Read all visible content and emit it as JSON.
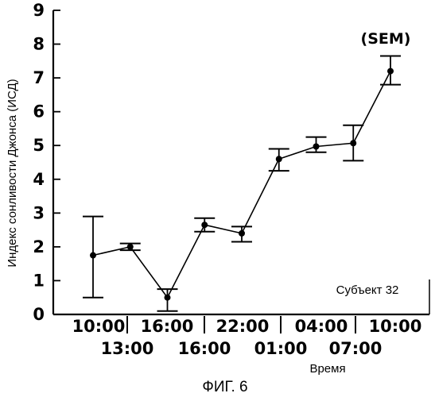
{
  "chart_data": {
    "type": "line",
    "ylabel": "Индекс сонливости Джонса (ИСД)",
    "xlabel": "Время",
    "ylim": [
      0,
      9
    ],
    "yticks": [
      0,
      1,
      2,
      3,
      4,
      5,
      6,
      7,
      8,
      9
    ],
    "x_ticks_top": [
      "10:00",
      "16:00",
      "22:00",
      "04:00",
      "10:00"
    ],
    "x_ticks_bottom": [
      "13:00",
      "16:00",
      "01:00",
      "07:00"
    ],
    "annotation": "Субъект 32",
    "error_label": "(SEM)",
    "grid": false,
    "points": [
      {
        "y": 1.75,
        "lo": 0.5,
        "hi": 2.9
      },
      {
        "y": 2.0,
        "lo": 1.9,
        "hi": 2.1
      },
      {
        "y": 0.5,
        "lo": 0.1,
        "hi": 0.75
      },
      {
        "y": 2.65,
        "lo": 2.45,
        "hi": 2.85
      },
      {
        "y": 2.4,
        "lo": 2.15,
        "hi": 2.6
      },
      {
        "y": 4.6,
        "lo": 4.25,
        "hi": 4.9
      },
      {
        "y": 4.97,
        "lo": 4.8,
        "hi": 5.25
      },
      {
        "y": 5.07,
        "lo": 4.55,
        "hi": 5.6
      },
      {
        "y": 7.2,
        "lo": 6.8,
        "hi": 7.65
      }
    ]
  },
  "caption": "ФИГ. 6"
}
